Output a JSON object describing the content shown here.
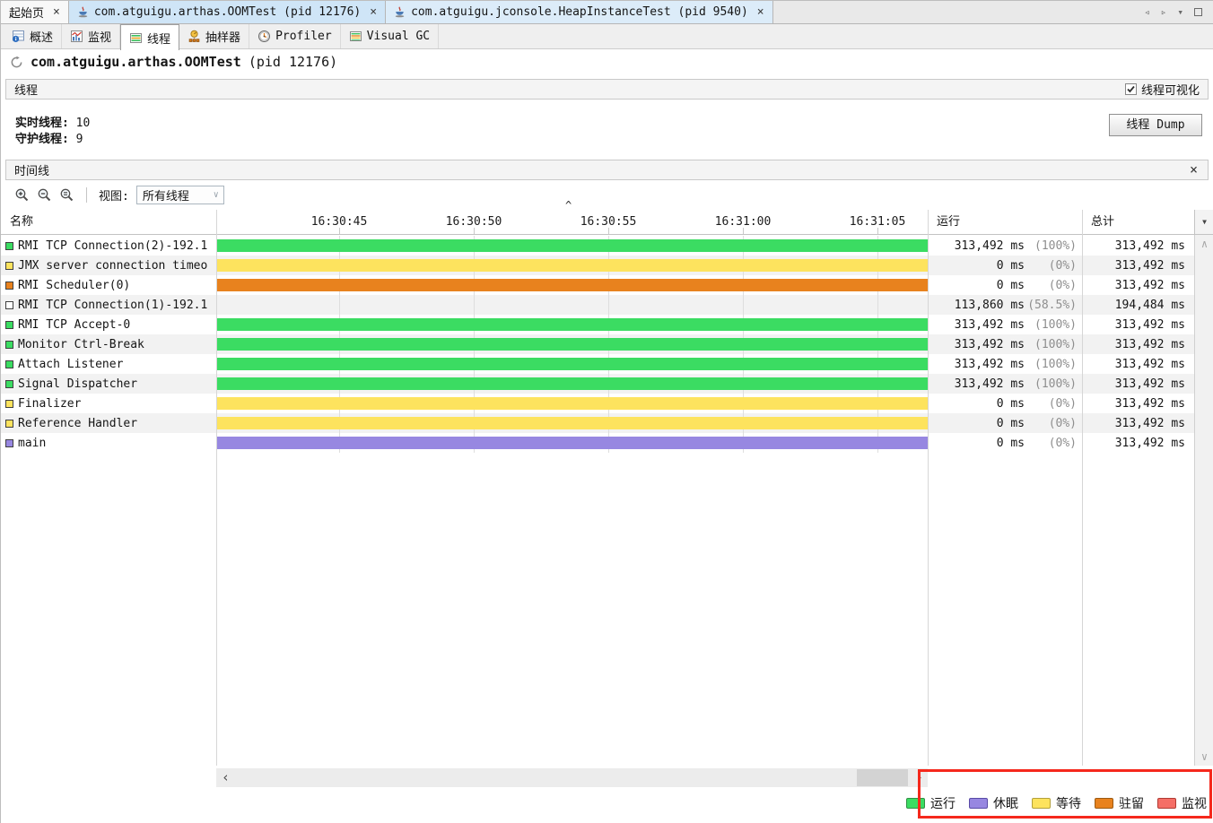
{
  "window": {
    "tabs": [
      {
        "label": "起始页"
      },
      {
        "label": "com.atguigu.arthas.OOMTest (pid 12176)"
      },
      {
        "label": "com.atguigu.jconsole.HeapInstanceTest (pid 9540)"
      }
    ],
    "close_glyph": "×"
  },
  "toolbar": {
    "items": [
      {
        "label": "概述"
      },
      {
        "label": "监视"
      },
      {
        "label": "线程"
      },
      {
        "label": "抽样器"
      },
      {
        "label": "Profiler"
      },
      {
        "label": "Visual GC"
      }
    ]
  },
  "title": {
    "app_class": "com.atguigu.arthas.OOMTest",
    "pid": "(pid 12176)"
  },
  "threads_panel": {
    "header": "线程",
    "visualization_label": "线程可视化",
    "live_label": "实时线程:",
    "live_value": "10",
    "daemon_label": "守护线程:",
    "daemon_value": "9",
    "dump_button": "线程 Dump"
  },
  "timeline_panel": {
    "header": "时间线",
    "close_glyph": "×",
    "view_label": "视图:",
    "view_value": "所有线程",
    "columns": {
      "name": "名称",
      "running": "运行",
      "total": "总计"
    },
    "time_ticks": [
      "16:30:45",
      "16:30:50",
      "16:30:55",
      "16:31:00",
      "16:31:05"
    ],
    "rows": [
      {
        "name": "RMI TCP Connection(2)-192.1",
        "state": "running",
        "running": "313,492 ms",
        "percent": "(100%)",
        "total": "313,492 ms"
      },
      {
        "name": "JMX server connection timeo",
        "state": "waiting",
        "running": "0 ms",
        "percent": "(0%)",
        "total": "313,492 ms"
      },
      {
        "name": "RMI Scheduler(0)",
        "state": "park",
        "running": "0 ms",
        "percent": "(0%)",
        "total": "313,492 ms"
      },
      {
        "name": "RMI TCP Connection(1)-192.1",
        "state": "finished",
        "running": "113,860 ms",
        "percent": "(58.5%)",
        "total": "194,484 ms"
      },
      {
        "name": "RMI TCP Accept-0",
        "state": "running",
        "running": "313,492 ms",
        "percent": "(100%)",
        "total": "313,492 ms"
      },
      {
        "name": "Monitor Ctrl-Break",
        "state": "running",
        "running": "313,492 ms",
        "percent": "(100%)",
        "total": "313,492 ms"
      },
      {
        "name": "Attach Listener",
        "state": "running",
        "running": "313,492 ms",
        "percent": "(100%)",
        "total": "313,492 ms"
      },
      {
        "name": "Signal Dispatcher",
        "state": "running",
        "running": "313,492 ms",
        "percent": "(100%)",
        "total": "313,492 ms"
      },
      {
        "name": "Finalizer",
        "state": "waiting",
        "running": "0 ms",
        "percent": "(0%)",
        "total": "313,492 ms"
      },
      {
        "name": "Reference Handler",
        "state": "waiting",
        "running": "0 ms",
        "percent": "(0%)",
        "total": "313,492 ms"
      },
      {
        "name": "main",
        "state": "sleeping",
        "running": "0 ms",
        "percent": "(0%)",
        "total": "313,492 ms"
      }
    ]
  },
  "legend": {
    "items": [
      {
        "label": "运行",
        "fill": "#3bdc62",
        "border": "#2f8f44"
      },
      {
        "label": "休眠",
        "fill": "#9787e1",
        "border": "#584aa6"
      },
      {
        "label": "等待",
        "fill": "#fde35e",
        "border": "#b3a03a"
      },
      {
        "label": "驻留",
        "fill": "#e8821e",
        "border": "#9c5a12"
      },
      {
        "label": "监视",
        "fill": "#f56e66",
        "border": "#b03a32"
      }
    ]
  },
  "colors": {
    "running": "#3bdc62",
    "sleeping": "#9787e1",
    "waiting": "#fde35e",
    "park": "#e8821e",
    "monitor": "#f56e66",
    "annotation": "#f5281c",
    "selected_tab": "#cfe5f7"
  }
}
